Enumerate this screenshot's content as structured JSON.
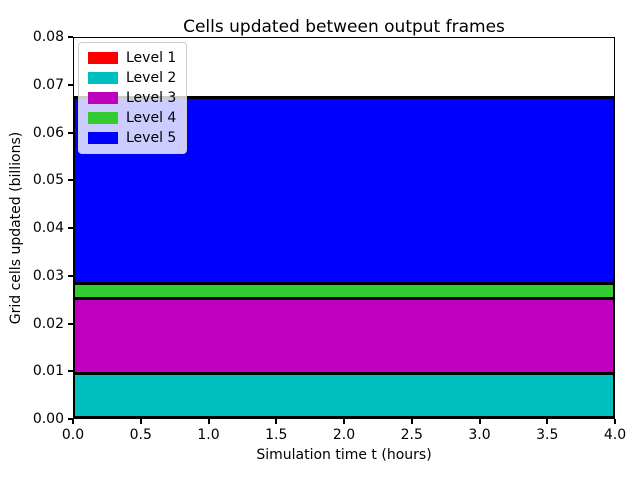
{
  "chart_data": {
    "type": "area",
    "stacked": true,
    "title": "Cells updated between output frames",
    "xlabel": "Simulation time t (hours)",
    "ylabel": "Grid cells updated (billions)",
    "xlim": [
      0.0,
      4.0
    ],
    "ylim": [
      0.0,
      0.08
    ],
    "grid": false,
    "x_ticks": [
      0.0,
      0.5,
      1.0,
      1.5,
      2.0,
      2.5,
      3.0,
      3.5,
      4.0
    ],
    "x_tick_labels": [
      "0.0",
      "0.5",
      "1.0",
      "1.5",
      "2.0",
      "2.5",
      "3.0",
      "3.5",
      "4.0"
    ],
    "y_ticks": [
      0.0,
      0.01,
      0.02,
      0.03,
      0.04,
      0.05,
      0.06,
      0.07,
      0.08
    ],
    "y_tick_labels": [
      "0.00",
      "0.01",
      "0.02",
      "0.03",
      "0.04",
      "0.05",
      "0.06",
      "0.07",
      "0.08"
    ],
    "legend": {
      "position": "upper left",
      "entries": [
        "Level 1",
        "Level 2",
        "Level 3",
        "Level 4",
        "Level 5"
      ]
    },
    "series": [
      {
        "name": "Level 1",
        "color": "#ff0000",
        "x": [
          0.0,
          4.0
        ],
        "values": [
          0.0002,
          0.0002
        ]
      },
      {
        "name": "Level 2",
        "color": "#00bfbf",
        "x": [
          0.0,
          4.0
        ],
        "values": [
          0.0093,
          0.0093
        ]
      },
      {
        "name": "Level 3",
        "color": "#bf00bf",
        "x": [
          0.0,
          4.0
        ],
        "values": [
          0.0157,
          0.0157
        ]
      },
      {
        "name": "Level 4",
        "color": "#33cc33",
        "x": [
          0.0,
          4.0
        ],
        "values": [
          0.0032,
          0.0032
        ]
      },
      {
        "name": "Level 5",
        "color": "#0000ff",
        "x": [
          0.0,
          4.0
        ],
        "values": [
          0.039,
          0.039
        ]
      }
    ],
    "cumulative_tops": [
      0.0002,
      0.0095,
      0.0252,
      0.0284,
      0.0674
    ],
    "edge_color": "#000000"
  }
}
